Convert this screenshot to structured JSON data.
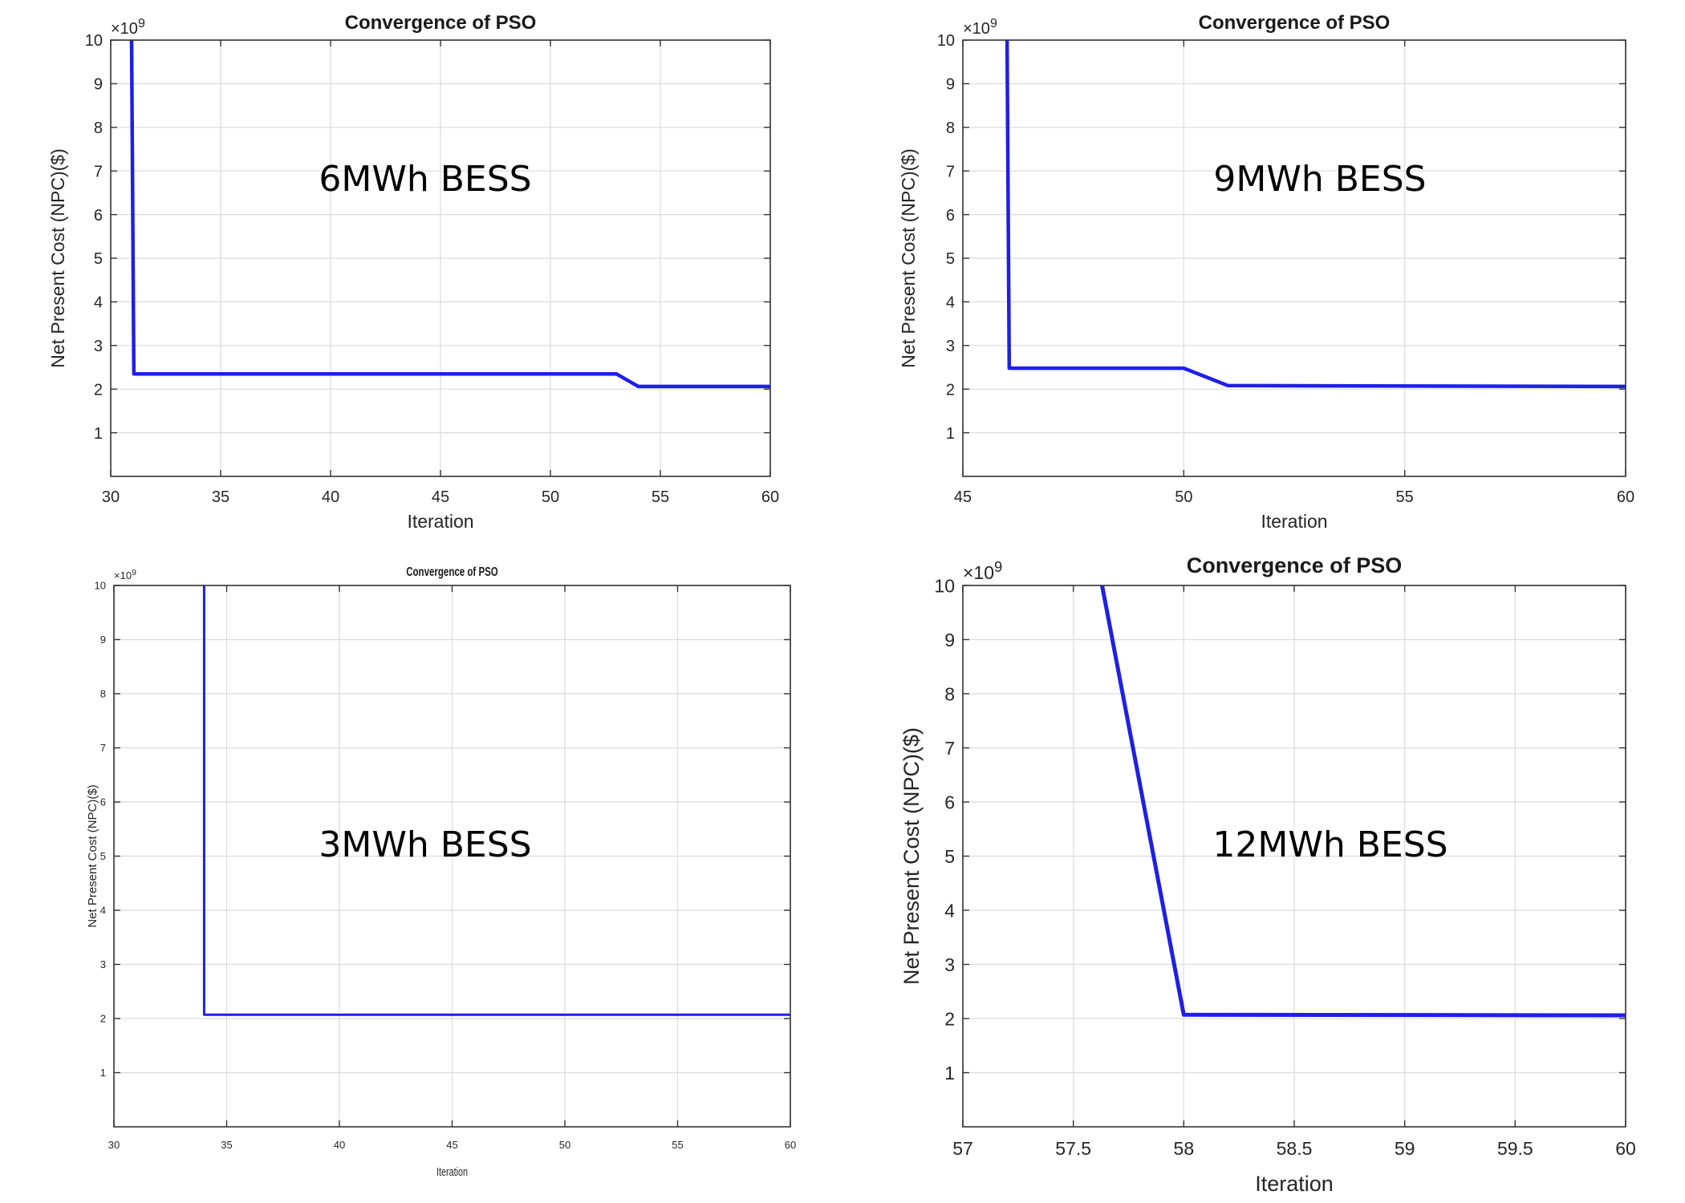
{
  "chart_data": [
    {
      "type": "line",
      "title": "Convergence of PSO",
      "xlabel": "Iteration",
      "ylabel": "Net Present Cost (NPC)($)",
      "exponent_label": "×10",
      "exponent_power": "9",
      "annotation": "6MWh BESS",
      "xlim": [
        30,
        60
      ],
      "ylim": [
        0,
        10
      ],
      "xticks": [
        "30",
        "35",
        "40",
        "45",
        "50",
        "55",
        "60"
      ],
      "xtick_values": [
        30,
        35,
        40,
        45,
        50,
        55,
        60
      ],
      "yticks": [
        "1",
        "2",
        "3",
        "4",
        "5",
        "6",
        "7",
        "8",
        "9",
        "10"
      ],
      "ytick_values": [
        1,
        2,
        3,
        4,
        5,
        6,
        7,
        8,
        9,
        10
      ],
      "grid": true,
      "series": [
        {
          "color": "#1f1fe6",
          "x": [
            30.95,
            31.05,
            53,
            54,
            60
          ],
          "y": [
            10,
            2.35,
            2.35,
            2.06,
            2.06
          ]
        }
      ]
    },
    {
      "type": "line",
      "title": "Convergence of PSO",
      "xlabel": "Iteration",
      "ylabel": "Net Present Cost (NPC)($)",
      "exponent_label": "×10",
      "exponent_power": "9",
      "annotation": "9MWh BESS",
      "xlim": [
        45,
        60
      ],
      "ylim": [
        0,
        10
      ],
      "xticks": [
        "45",
        "50",
        "55",
        "60"
      ],
      "xtick_values": [
        45,
        50,
        55,
        60
      ],
      "yticks": [
        "1",
        "2",
        "3",
        "4",
        "5",
        "6",
        "7",
        "8",
        "9",
        "10"
      ],
      "ytick_values": [
        1,
        2,
        3,
        4,
        5,
        6,
        7,
        8,
        9,
        10
      ],
      "grid": true,
      "series": [
        {
          "color": "#1f1fe6",
          "x": [
            46,
            46.05,
            50,
            51,
            60
          ],
          "y": [
            10,
            2.48,
            2.48,
            2.08,
            2.06
          ]
        }
      ]
    },
    {
      "type": "line",
      "title": "Convergence of PSO",
      "xlabel": "Iteration",
      "ylabel": "Net Present Cost (NPC)($)",
      "exponent_label": "×10",
      "exponent_power": "9",
      "annotation": "3MWh BESS",
      "xlim": [
        30,
        60
      ],
      "ylim": [
        0,
        10
      ],
      "xticks": [
        "30",
        "35",
        "40",
        "45",
        "50",
        "55",
        "60"
      ],
      "xtick_values": [
        30,
        35,
        40,
        45,
        50,
        55,
        60
      ],
      "yticks": [
        "1",
        "2",
        "3",
        "4",
        "5",
        "6",
        "7",
        "8",
        "9",
        "10"
      ],
      "ytick_values": [
        1,
        2,
        3,
        4,
        5,
        6,
        7,
        8,
        9,
        10
      ],
      "grid": true,
      "series": [
        {
          "color": "#1f1fe6",
          "x": [
            34,
            34,
            60
          ],
          "y": [
            10,
            2.07,
            2.07
          ]
        }
      ]
    },
    {
      "type": "line",
      "title": "Convergence of PSO",
      "xlabel": "Iteration",
      "ylabel": "Net Present Cost (NPC)($)",
      "exponent_label": "×10",
      "exponent_power": "9",
      "annotation": "12MWh BESS",
      "xlim": [
        57,
        60
      ],
      "ylim": [
        0,
        10
      ],
      "xticks": [
        "57",
        "57.5",
        "58",
        "58.5",
        "59",
        "59.5",
        "60"
      ],
      "xtick_values": [
        57,
        57.5,
        58,
        58.5,
        59,
        59.5,
        60
      ],
      "yticks": [
        "1",
        "2",
        "3",
        "4",
        "5",
        "6",
        "7",
        "8",
        "9",
        "10"
      ],
      "ytick_values": [
        1,
        2,
        3,
        4,
        5,
        6,
        7,
        8,
        9,
        10
      ],
      "grid": true,
      "series": [
        {
          "color": "#1f1fe6",
          "x": [
            57.63,
            58,
            60
          ],
          "y": [
            10,
            2.07,
            2.06
          ]
        }
      ]
    }
  ]
}
